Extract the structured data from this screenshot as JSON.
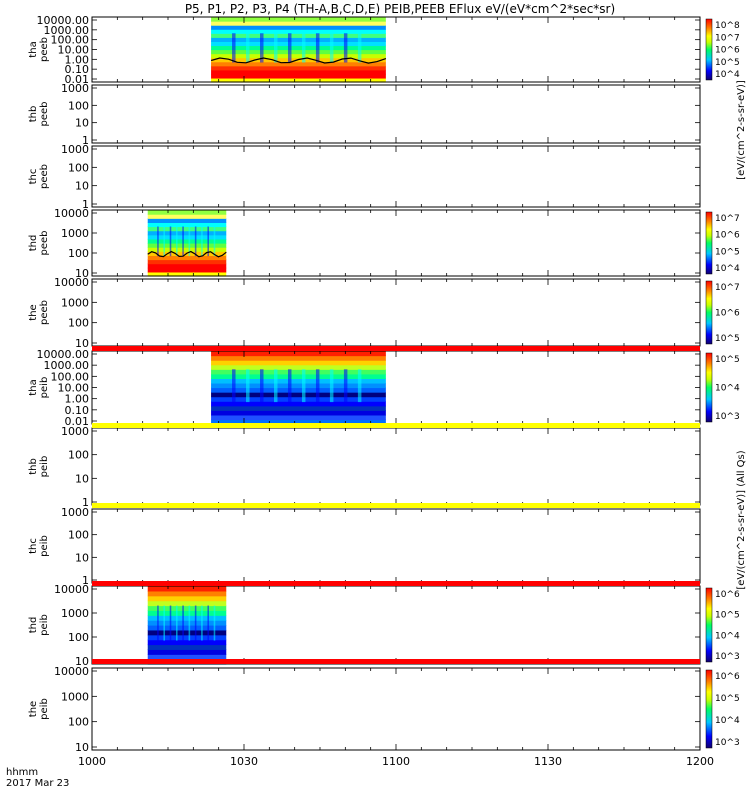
{
  "chart_data": {
    "type": "heatmap",
    "title": "P5, P1, P2, P3, P4 (TH-A,B,C,D,E) PEIB,PEEB EFlux eV/(eV*cm^2*sec*sr)",
    "x_ticks": [
      "1000",
      "1030",
      "1100",
      "1130",
      "1200"
    ],
    "x_range_minutes": [
      0,
      120
    ],
    "x_label_line1": "hhmm",
    "x_label_line2": "2017 Mar 23",
    "colorbar_unit_1": "[eV/(cm^2-s-sr-eV)]",
    "colorbar_unit_2": "[eV/(cm^2-s-sr-eV)] (All Qs)",
    "panels": [
      {
        "probe": "tha",
        "instrument": "peeb",
        "y_ticks": [
          "10000.00",
          "1000.00",
          "100.00",
          "10.00",
          "1.00",
          "0.10",
          "0.01"
        ],
        "data_window": [
          23.5,
          58
        ],
        "dominant": "high-flux",
        "colorbar_ticks": [
          "10^8",
          "10^7",
          "10^6",
          "10^5",
          "10^4"
        ]
      },
      {
        "probe": "thb",
        "instrument": "peeb",
        "y_ticks": [
          "1000",
          "100",
          "10",
          "1"
        ],
        "data_window": null,
        "colorbar_ticks": []
      },
      {
        "probe": "thc",
        "instrument": "peeb",
        "y_ticks": [
          "1000",
          "100",
          "10",
          "1"
        ],
        "data_window": null,
        "colorbar_ticks": []
      },
      {
        "probe": "thd",
        "instrument": "peeb",
        "y_ticks": [
          "10000",
          "1000",
          "100",
          "10"
        ],
        "data_window": [
          11,
          26.5
        ],
        "dominant": "high-flux",
        "colorbar_ticks": [
          "10^7",
          "10^6",
          "10^5",
          "10^4"
        ]
      },
      {
        "probe": "the",
        "instrument": "peeb",
        "y_ticks": [
          "10000",
          "1000",
          "100",
          "10"
        ],
        "data_window": null,
        "colorbar_ticks": [
          "10^7",
          "10^6",
          "10^5"
        ]
      },
      {
        "probe": "tha",
        "instrument": "peib",
        "y_ticks": [
          "10000.00",
          "1000.00",
          "100.00",
          "10.00",
          "1.00",
          "0.10",
          "0.01"
        ],
        "data_window": [
          23.5,
          58
        ],
        "dominant": "low-flux",
        "colorbar_ticks": [
          "10^5",
          "10^4",
          "10^3"
        ]
      },
      {
        "probe": "thb",
        "instrument": "peib",
        "y_ticks": [
          "1000",
          "100",
          "10",
          "1"
        ],
        "data_window": null,
        "colorbar_ticks": []
      },
      {
        "probe": "thc",
        "instrument": "peib",
        "y_ticks": [
          "1000",
          "100",
          "10",
          "1"
        ],
        "data_window": null,
        "colorbar_ticks": []
      },
      {
        "probe": "thd",
        "instrument": "peib",
        "y_ticks": [
          "10000",
          "1000",
          "100",
          "10"
        ],
        "data_window": [
          11,
          26.5
        ],
        "dominant": "low-flux",
        "colorbar_ticks": [
          "10^6",
          "10^5",
          "10^4",
          "10^3"
        ]
      },
      {
        "probe": "the",
        "instrument": "peib",
        "y_ticks": [
          "10000",
          "1000",
          "100",
          "10"
        ],
        "data_window": null,
        "colorbar_ticks": [
          "10^6",
          "10^5",
          "10^4",
          "10^3"
        ]
      }
    ],
    "status_bars": [
      "red",
      "yellow",
      "yellow",
      "red",
      "red"
    ],
    "status_bar_colors": {
      "red": "#ff0000",
      "yellow": "#ffff00"
    }
  }
}
